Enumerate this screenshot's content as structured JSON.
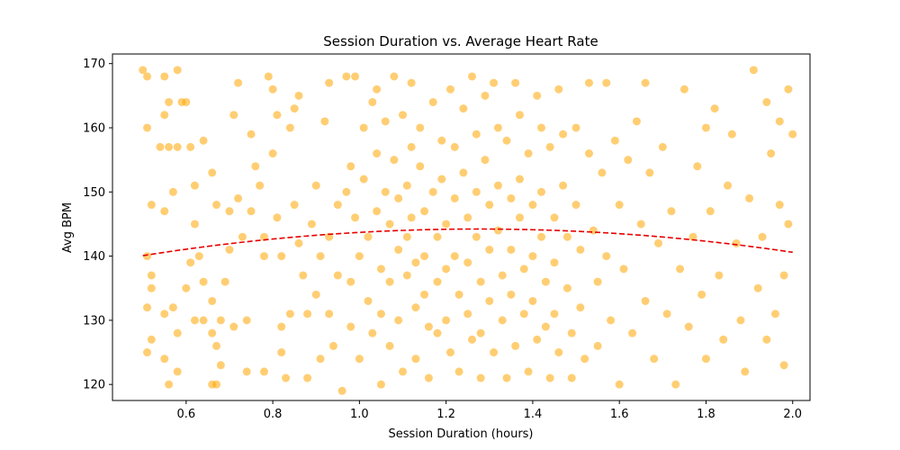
{
  "chart_data": {
    "type": "scatter",
    "title": "Session Duration vs. Average Heart Rate",
    "xlabel": "Session Duration (hours)",
    "ylabel": "Avg BPM",
    "xlim": [
      0.43,
      2.04
    ],
    "ylim": [
      117.5,
      171.5
    ],
    "xticks": [
      0.6,
      0.8,
      1.0,
      1.2,
      1.4,
      1.6,
      1.8,
      2.0
    ],
    "xtick_labels": [
      "0.6",
      "0.8",
      "1.0",
      "1.2",
      "1.4",
      "1.6",
      "1.8",
      "2.0"
    ],
    "yticks": [
      120,
      130,
      140,
      150,
      160,
      170
    ],
    "ytick_labels": [
      "120",
      "130",
      "140",
      "150",
      "160",
      "170"
    ],
    "grid": false,
    "series": [
      {
        "point_color": "#FFA500",
        "point_alpha": 0.55,
        "points": [
          [
            0.5,
            169
          ],
          [
            0.51,
            168
          ],
          [
            0.55,
            168
          ],
          [
            0.58,
            169
          ],
          [
            0.51,
            160
          ],
          [
            0.55,
            162
          ],
          [
            0.56,
            164
          ],
          [
            0.59,
            164
          ],
          [
            0.6,
            164
          ],
          [
            0.54,
            157
          ],
          [
            0.56,
            157
          ],
          [
            0.58,
            157
          ],
          [
            0.61,
            157
          ],
          [
            0.52,
            148
          ],
          [
            0.55,
            147
          ],
          [
            0.57,
            150
          ],
          [
            0.62,
            151
          ],
          [
            0.64,
            158
          ],
          [
            0.66,
            153
          ],
          [
            0.62,
            145
          ],
          [
            0.67,
            148
          ],
          [
            0.51,
            140
          ],
          [
            0.52,
            137
          ],
          [
            0.52,
            135
          ],
          [
            0.55,
            131
          ],
          [
            0.57,
            132
          ],
          [
            0.51,
            132
          ],
          [
            0.52,
            127
          ],
          [
            0.51,
            125
          ],
          [
            0.55,
            124
          ],
          [
            0.56,
            120
          ],
          [
            0.58,
            122
          ],
          [
            0.58,
            128
          ],
          [
            0.6,
            135
          ],
          [
            0.61,
            139
          ],
          [
            0.63,
            140
          ],
          [
            0.64,
            136
          ],
          [
            0.62,
            130
          ],
          [
            0.64,
            130
          ],
          [
            0.66,
            133
          ],
          [
            0.66,
            128
          ],
          [
            0.67,
            126
          ],
          [
            0.66,
            120
          ],
          [
            0.67,
            120
          ],
          [
            0.68,
            123
          ],
          [
            0.68,
            130
          ],
          [
            0.69,
            136
          ],
          [
            0.7,
            147
          ],
          [
            0.7,
            141
          ],
          [
            0.71,
            129
          ],
          [
            0.72,
            167
          ],
          [
            0.71,
            162
          ],
          [
            0.72,
            149
          ],
          [
            0.73,
            143
          ],
          [
            0.74,
            130
          ],
          [
            0.74,
            122
          ],
          [
            0.75,
            159
          ],
          [
            0.76,
            154
          ],
          [
            0.77,
            151
          ],
          [
            0.75,
            147
          ],
          [
            0.78,
            140
          ],
          [
            0.78,
            143
          ],
          [
            0.78,
            122
          ],
          [
            0.79,
            168
          ],
          [
            0.8,
            166
          ],
          [
            0.81,
            162
          ],
          [
            0.8,
            156
          ],
          [
            0.81,
            146
          ],
          [
            0.82,
            140
          ],
          [
            0.82,
            125
          ],
          [
            0.82,
            129
          ],
          [
            0.83,
            121
          ],
          [
            0.84,
            131
          ],
          [
            0.84,
            160
          ],
          [
            0.85,
            163
          ],
          [
            0.86,
            165
          ],
          [
            0.85,
            148
          ],
          [
            0.86,
            142
          ],
          [
            0.87,
            137
          ],
          [
            0.88,
            131
          ],
          [
            0.88,
            121
          ],
          [
            0.89,
            145
          ],
          [
            0.9,
            151
          ],
          [
            0.9,
            134
          ],
          [
            0.91,
            140
          ],
          [
            0.91,
            124
          ],
          [
            0.92,
            161
          ],
          [
            0.93,
            167
          ],
          [
            0.93,
            143
          ],
          [
            0.93,
            131
          ],
          [
            0.94,
            126
          ],
          [
            0.95,
            148
          ],
          [
            0.95,
            137
          ],
          [
            0.96,
            119
          ],
          [
            0.97,
            150
          ],
          [
            0.97,
            168
          ],
          [
            0.98,
            154
          ],
          [
            0.98,
            136
          ],
          [
            0.98,
            129
          ],
          [
            0.99,
            168
          ],
          [
            0.99,
            146
          ],
          [
            1.0,
            140
          ],
          [
            1.0,
            124
          ],
          [
            1.01,
            160
          ],
          [
            1.01,
            152
          ],
          [
            1.02,
            143
          ],
          [
            1.02,
            133
          ],
          [
            1.03,
            128
          ],
          [
            1.03,
            164
          ],
          [
            1.04,
            166
          ],
          [
            1.04,
            156
          ],
          [
            1.04,
            147
          ],
          [
            1.05,
            138
          ],
          [
            1.05,
            131
          ],
          [
            1.05,
            120
          ],
          [
            1.06,
            161
          ],
          [
            1.06,
            150
          ],
          [
            1.07,
            145
          ],
          [
            1.07,
            136
          ],
          [
            1.07,
            126
          ],
          [
            1.08,
            168
          ],
          [
            1.08,
            155
          ],
          [
            1.09,
            149
          ],
          [
            1.09,
            141
          ],
          [
            1.09,
            130
          ],
          [
            1.1,
            122
          ],
          [
            1.1,
            162
          ],
          [
            1.11,
            151
          ],
          [
            1.11,
            143
          ],
          [
            1.11,
            137
          ],
          [
            1.12,
            167
          ],
          [
            1.12,
            157
          ],
          [
            1.12,
            146
          ],
          [
            1.13,
            139
          ],
          [
            1.13,
            132
          ],
          [
            1.13,
            124
          ],
          [
            1.14,
            160
          ],
          [
            1.14,
            154
          ],
          [
            1.15,
            147
          ],
          [
            1.15,
            140
          ],
          [
            1.15,
            134
          ],
          [
            1.16,
            129
          ],
          [
            1.16,
            121
          ],
          [
            1.17,
            164
          ],
          [
            1.17,
            150
          ],
          [
            1.18,
            143
          ],
          [
            1.18,
            136
          ],
          [
            1.18,
            128
          ],
          [
            1.19,
            158
          ],
          [
            1.19,
            152
          ],
          [
            1.2,
            145
          ],
          [
            1.2,
            138
          ],
          [
            1.2,
            130
          ],
          [
            1.21,
            125
          ],
          [
            1.21,
            166
          ],
          [
            1.22,
            157
          ],
          [
            1.22,
            149
          ],
          [
            1.22,
            140
          ],
          [
            1.23,
            134
          ],
          [
            1.23,
            122
          ],
          [
            1.24,
            163
          ],
          [
            1.24,
            153
          ],
          [
            1.25,
            146
          ],
          [
            1.25,
            139
          ],
          [
            1.25,
            131
          ],
          [
            1.26,
            127
          ],
          [
            1.26,
            168
          ],
          [
            1.27,
            159
          ],
          [
            1.27,
            150
          ],
          [
            1.27,
            143
          ],
          [
            1.28,
            136
          ],
          [
            1.28,
            128
          ],
          [
            1.28,
            121
          ],
          [
            1.29,
            165
          ],
          [
            1.29,
            155
          ],
          [
            1.3,
            148
          ],
          [
            1.3,
            141
          ],
          [
            1.3,
            133
          ],
          [
            1.31,
            125
          ],
          [
            1.31,
            167
          ],
          [
            1.32,
            160
          ],
          [
            1.32,
            151
          ],
          [
            1.32,
            144
          ],
          [
            1.33,
            137
          ],
          [
            1.33,
            130
          ],
          [
            1.34,
            121
          ],
          [
            1.34,
            158
          ],
          [
            1.35,
            149
          ],
          [
            1.35,
            141
          ],
          [
            1.35,
            134
          ],
          [
            1.36,
            126
          ],
          [
            1.36,
            167
          ],
          [
            1.37,
            162
          ],
          [
            1.37,
            152
          ],
          [
            1.37,
            146
          ],
          [
            1.38,
            138
          ],
          [
            1.38,
            131
          ],
          [
            1.39,
            122
          ],
          [
            1.39,
            156
          ],
          [
            1.4,
            148
          ],
          [
            1.4,
            140
          ],
          [
            1.4,
            133
          ],
          [
            1.41,
            127
          ],
          [
            1.41,
            165
          ],
          [
            1.42,
            160
          ],
          [
            1.42,
            150
          ],
          [
            1.42,
            143
          ],
          [
            1.43,
            136
          ],
          [
            1.43,
            129
          ],
          [
            1.44,
            121
          ],
          [
            1.44,
            157
          ],
          [
            1.45,
            146
          ],
          [
            1.45,
            139
          ],
          [
            1.45,
            131
          ],
          [
            1.46,
            125
          ],
          [
            1.46,
            166
          ],
          [
            1.47,
            159
          ],
          [
            1.47,
            151
          ],
          [
            1.48,
            143
          ],
          [
            1.48,
            135
          ],
          [
            1.49,
            128
          ],
          [
            1.49,
            121
          ],
          [
            1.5,
            160
          ],
          [
            1.5,
            148
          ],
          [
            1.51,
            141
          ],
          [
            1.51,
            132
          ],
          [
            1.52,
            124
          ],
          [
            1.53,
            156
          ],
          [
            1.53,
            167
          ],
          [
            1.54,
            144
          ],
          [
            1.55,
            136
          ],
          [
            1.55,
            126
          ],
          [
            1.56,
            153
          ],
          [
            1.57,
            167
          ],
          [
            1.57,
            140
          ],
          [
            1.58,
            130
          ],
          [
            1.59,
            158
          ],
          [
            1.6,
            148
          ],
          [
            1.6,
            120
          ],
          [
            1.61,
            138
          ],
          [
            1.62,
            155
          ],
          [
            1.63,
            128
          ],
          [
            1.64,
            161
          ],
          [
            1.65,
            145
          ],
          [
            1.66,
            167
          ],
          [
            1.66,
            133
          ],
          [
            1.67,
            153
          ],
          [
            1.68,
            124
          ],
          [
            1.69,
            142
          ],
          [
            1.7,
            157
          ],
          [
            1.71,
            131
          ],
          [
            1.72,
            147
          ],
          [
            1.73,
            120
          ],
          [
            1.74,
            138
          ],
          [
            1.75,
            166
          ],
          [
            1.76,
            129
          ],
          [
            1.77,
            143
          ],
          [
            1.78,
            154
          ],
          [
            1.79,
            134
          ],
          [
            1.8,
            124
          ],
          [
            1.8,
            160
          ],
          [
            1.81,
            147
          ],
          [
            1.82,
            163
          ],
          [
            1.83,
            137
          ],
          [
            1.84,
            127
          ],
          [
            1.85,
            151
          ],
          [
            1.86,
            159
          ],
          [
            1.87,
            142
          ],
          [
            1.88,
            130
          ],
          [
            1.89,
            122
          ],
          [
            1.9,
            149
          ],
          [
            1.91,
            169
          ],
          [
            1.92,
            135
          ],
          [
            1.93,
            143
          ],
          [
            1.94,
            164
          ],
          [
            1.94,
            127
          ],
          [
            1.95,
            156
          ],
          [
            1.96,
            131
          ],
          [
            1.97,
            161
          ],
          [
            1.97,
            148
          ],
          [
            1.98,
            123
          ],
          [
            1.98,
            137
          ],
          [
            1.99,
            166
          ],
          [
            1.99,
            145
          ],
          [
            2.0,
            159
          ]
        ]
      }
    ],
    "trendline": {
      "color": "#E60000",
      "style": "dashed",
      "coefficients": [
        -6.9,
        17.6,
        133.0
      ]
    }
  }
}
